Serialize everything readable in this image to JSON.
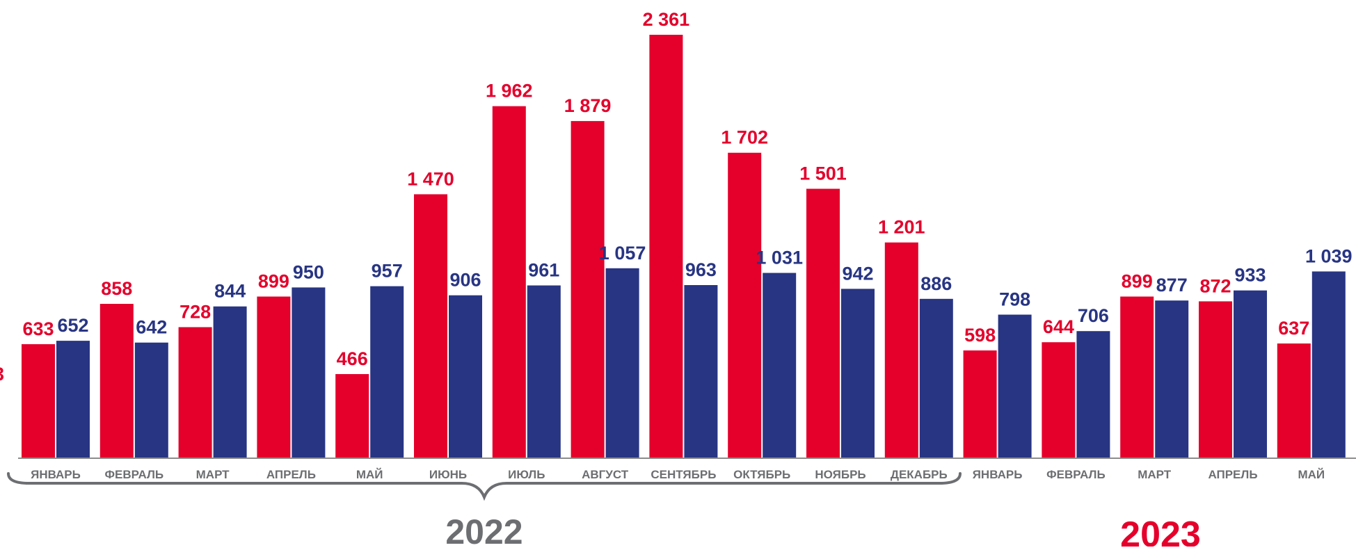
{
  "chart_data": {
    "type": "bar",
    "categories": [
      "ЯНВАРЬ",
      "ФЕВРАЛЬ",
      "МАРТ",
      "АПРЕЛЬ",
      "МАЙ",
      "ИЮНЬ",
      "ИЮЛЬ",
      "АВГУСТ",
      "СЕНТЯБРЬ",
      "ОКТЯБРЬ",
      "НОЯБРЬ",
      "ДЕКАБРЬ",
      "ЯНВАРЬ",
      "ФЕВРАЛЬ",
      "МАРТ",
      "АПРЕЛЬ",
      "МАЙ"
    ],
    "series": [
      {
        "color": "#e4002b",
        "values": [
          633,
          858,
          728,
          899,
          466,
          1470,
          1962,
          1879,
          2361,
          1702,
          1501,
          1201,
          598,
          644,
          899,
          872,
          637
        ],
        "labels": [
          "633",
          "858",
          "728",
          "899",
          "466",
          "1 470",
          "1 962",
          "1 879",
          "2 361",
          "1 702",
          "1 501",
          "1 201",
          "598",
          "644",
          "899",
          "872",
          "637"
        ]
      },
      {
        "color": "#283583",
        "values": [
          652,
          642,
          844,
          950,
          957,
          906,
          961,
          1057,
          963,
          1031,
          942,
          886,
          798,
          706,
          877,
          933,
          1039
        ],
        "labels": [
          "652",
          "642",
          "844",
          "950",
          "957",
          "906",
          "961",
          "1 057",
          "963",
          "1 031",
          "942",
          "886",
          "798",
          "706",
          "877",
          "933",
          "1 039"
        ]
      }
    ],
    "ylim": [
      0,
      2361
    ],
    "year_groups": [
      {
        "label": "2022",
        "start_index": 0,
        "end_index": 11,
        "color": "#6d6e71"
      },
      {
        "label": "2023",
        "start_index": 12,
        "end_index": 16,
        "color": "#e4002b"
      }
    ],
    "axis_color": "#8c8c8c",
    "tick_label_color": "#6d6e71",
    "clipped_left_label": "3"
  }
}
